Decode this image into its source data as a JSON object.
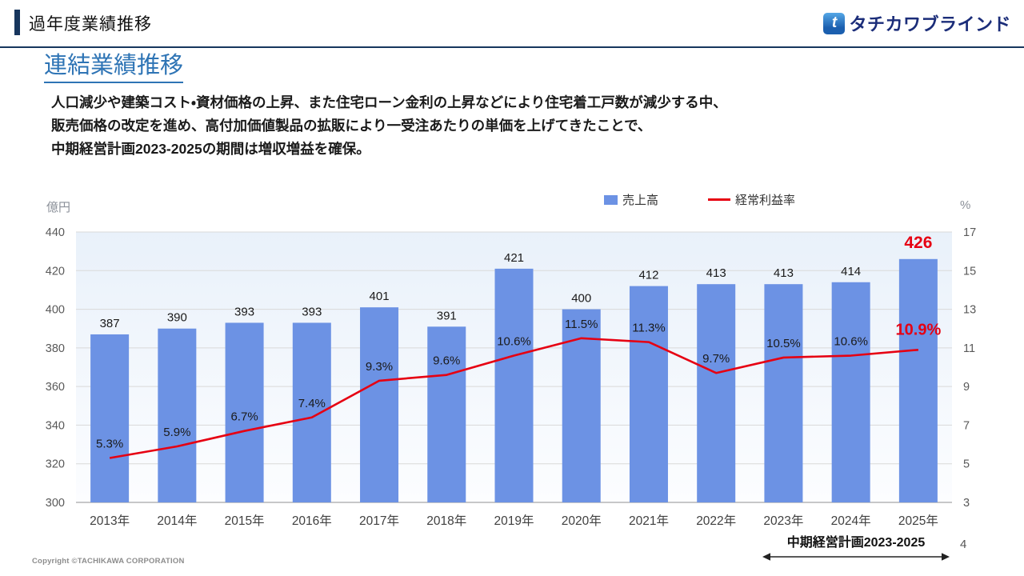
{
  "header": {
    "title": "過年度業績推移",
    "logo_text": "タチカワブラインド",
    "logo_mark": "t"
  },
  "section": {
    "title": "連結業績推移",
    "body_lines": [
      "人口減少や建築コスト・資材価格の上昇、また住宅ローン金利の上昇などにより住宅着工戸数が減少する中、",
      "販売価格の改定を進め、高付加価値製品の拡販により一受注あたりの単価を上げてきたことで、",
      "中期経営計画2023-2025の期間は増収増益を確保。"
    ]
  },
  "chart_data": {
    "type": "bar",
    "combo": "bar+line",
    "categories": [
      "2013年",
      "2014年",
      "2015年",
      "2016年",
      "2017年",
      "2018年",
      "2019年",
      "2020年",
      "2021年",
      "2022年",
      "2023年",
      "2024年",
      "2025年"
    ],
    "series": [
      {
        "name": "売上高",
        "type": "bar",
        "axis": "left",
        "color": "#6C92E4",
        "values": [
          387,
          390,
          393,
          393,
          401,
          391,
          421,
          400,
          412,
          413,
          413,
          414,
          426
        ]
      },
      {
        "name": "経常利益率",
        "type": "line",
        "axis": "right",
        "color": "#E60012",
        "values": [
          5.3,
          5.9,
          6.7,
          7.4,
          9.3,
          9.6,
          10.6,
          11.5,
          11.3,
          9.7,
          10.5,
          10.6,
          10.9
        ]
      }
    ],
    "left_axis": {
      "label": "億円",
      "min": 300,
      "max": 440,
      "step": 20
    },
    "right_axis": {
      "label": "%",
      "min": 3,
      "max": 17,
      "step": 2
    },
    "highlight_last": true,
    "highlight_color": "#E60012",
    "legend_position": "top",
    "grid": true,
    "annotation": "中期経営計画2023-2025"
  },
  "footer": {
    "copyright": "Copyright ©TACHIKAWA CORPORATION",
    "page_number": "4"
  }
}
